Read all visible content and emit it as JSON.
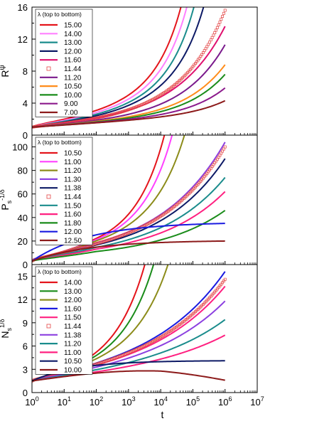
{
  "chart_data": [
    {
      "type": "line",
      "ylabel": "Rψ",
      "ylabel_main": "R",
      "ylabel_sup": "ψ",
      "xscale": "log",
      "xlim": [
        1,
        10000000
      ],
      "ylim": [
        0,
        16
      ],
      "yticks": [
        "0",
        "4",
        "8",
        "12",
        "16"
      ],
      "legend": {
        "title": "λ (top to bottom)",
        "position": "top-left"
      },
      "series": [
        {
          "name": "15.00",
          "color": "#e4141b",
          "growth": 4.2
        },
        {
          "name": "14.00",
          "color": "#ff80ff",
          "growth": 3.7
        },
        {
          "name": "13.00",
          "color": "#1a8c8c",
          "growth": 2.4
        },
        {
          "name": "12.00",
          "color": "#0d1a66",
          "growth": 1.6
        },
        {
          "name": "11.60",
          "color": "#e0106e",
          "growth": 1.25
        },
        {
          "name": "11.44",
          "color": "#e34444",
          "growth": 1.02,
          "marker": "square-open"
        },
        {
          "name": "11.20",
          "color": "#7a1a8c",
          "growth": 0.88
        },
        {
          "name": "10.50",
          "color": "#ff8c1a",
          "growth": 0.62
        },
        {
          "name": "10.00",
          "color": "#1a8c1a",
          "growth": 0.48
        },
        {
          "name": "9.00",
          "color": "#8c1a8c",
          "growth": 0.32
        },
        {
          "name": "7.00",
          "color": "#8c1a1a",
          "growth": 0.18
        }
      ],
      "values_at_t_1e6": [
        16,
        16,
        16,
        16,
        13.6,
        15.6,
        11.3,
        8.8,
        7.6,
        5.9,
        4.3
      ]
    },
    {
      "type": "line",
      "ylabel": "Ps-1/δ",
      "ylabel_main": "P",
      "ylabel_sub": "s",
      "ylabel_sup": "-1/δ",
      "xscale": "log",
      "xlim": [
        1,
        10000000
      ],
      "ylim": [
        0,
        110
      ],
      "yticks": [
        "0",
        "20",
        "40",
        "60",
        "80",
        "100"
      ],
      "legend": {
        "title": "λ (top to bottom)",
        "position": "top-left"
      },
      "series": [
        {
          "name": "10.50",
          "color": "#e4141b"
        },
        {
          "name": "11.00",
          "color": "#ff40ff"
        },
        {
          "name": "11.20",
          "color": "#8c8c1a"
        },
        {
          "name": "11.30",
          "color": "#8c40e0"
        },
        {
          "name": "11.38",
          "color": "#0d1a66"
        },
        {
          "name": "11.44",
          "color": "#e34444",
          "marker": "square-open"
        },
        {
          "name": "11.50",
          "color": "#1a8c8c"
        },
        {
          "name": "11.60",
          "color": "#ff2080"
        },
        {
          "name": "11.80",
          "color": "#1a8c1a"
        },
        {
          "name": "12.00",
          "color": "#1a1ae0"
        },
        {
          "name": "12.50",
          "color": "#8c1a1a"
        }
      ],
      "values_at_t_1e6": [
        110,
        110,
        110,
        104,
        90,
        100,
        74,
        62,
        46,
        35,
        20
      ]
    },
    {
      "type": "line",
      "ylabel": "Ns1/δ",
      "ylabel_main": "N",
      "ylabel_sub": "s",
      "ylabel_sup": "1/δ",
      "xlabel": "t",
      "xscale": "log",
      "xlim": [
        1,
        10000000
      ],
      "ylim": [
        0,
        16.5
      ],
      "yticks": [
        "0",
        "3",
        "6",
        "9",
        "12",
        "15"
      ],
      "xticks": [
        "10^0",
        "10^1",
        "10^2",
        "10^3",
        "10^4",
        "10^5",
        "10^6",
        "10^7"
      ],
      "legend": {
        "title": "λ (top to bottom)",
        "position": "top-left"
      },
      "series": [
        {
          "name": "14.00",
          "color": "#e4141b"
        },
        {
          "name": "13.00",
          "color": "#1a8c1a"
        },
        {
          "name": "12.00",
          "color": "#8c8c1a"
        },
        {
          "name": "11.60",
          "color": "#1a1ae0"
        },
        {
          "name": "11.50",
          "color": "#ff2080"
        },
        {
          "name": "11.44",
          "color": "#e34444",
          "marker": "square-open"
        },
        {
          "name": "11.38",
          "color": "#8c40e0"
        },
        {
          "name": "11.20",
          "color": "#1a8c8c"
        },
        {
          "name": "11.00",
          "color": "#ff2080"
        },
        {
          "name": "10.50",
          "color": "#0d1a66"
        },
        {
          "name": "10.00",
          "color": "#8c1a1a"
        }
      ],
      "values_at_t_1e6": [
        16.5,
        16.5,
        16.5,
        15.6,
        13.7,
        14.6,
        11.8,
        9.4,
        7.4,
        4.1,
        2.2
      ]
    }
  ]
}
